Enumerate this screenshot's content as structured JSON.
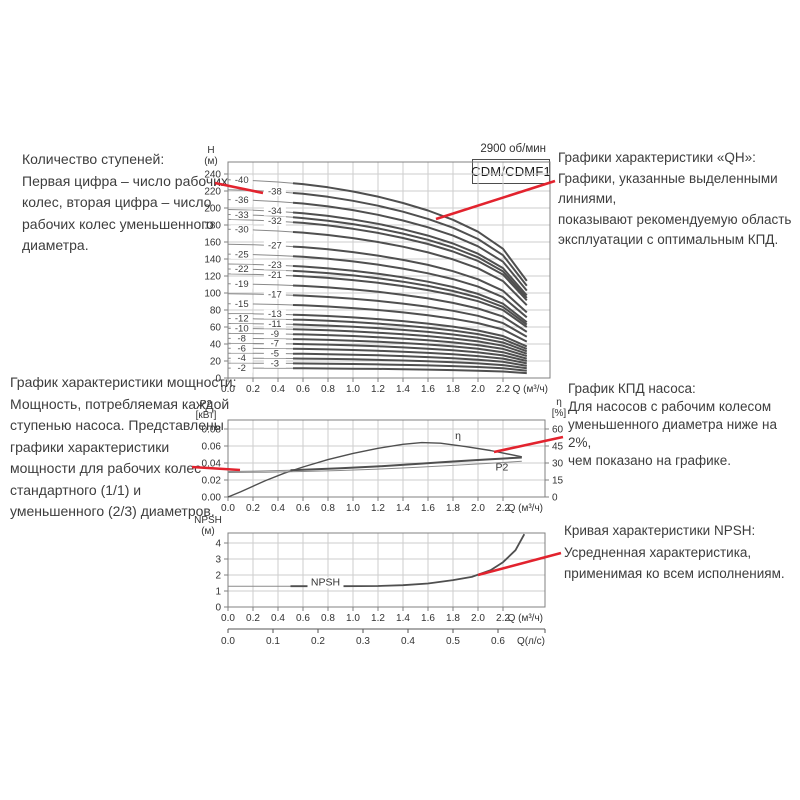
{
  "header": {
    "speed_label": "2900 об/мин",
    "model_label": "CDM/CDMF1"
  },
  "colors": {
    "callout_red": "#e2232e",
    "curve_dark": "#4f4f4f",
    "curve_thin": "#8a8a8a",
    "grid": "#cdcdcd",
    "frame": "#808080",
    "text": "#3d3d3d",
    "axis_text": "#333333"
  },
  "annotations": {
    "stages": "Количество ступеней:\nПервая цифра – число рабочих\nколес, вторая цифра – число\nрабочих колес уменьшенного\nдиаметра.",
    "qh": "Графики характеристики «QH»:\nГрафики, указанные выделенными линиями,\nпоказывают рекомендуемую область\nэксплуатации с оптимальным КПД.",
    "power": "График характеристики мощности:\nМощность, потребляемая каждой\nступенью насоса. Представлены\nграфики характеристики\nмощности для рабочих колес\nстандартного (1/1) и\nуменьшенного (2/3) диаметров.",
    "efficiency": "График КПД насоса:\nДля насосов с рабочим колесом\nуменьшенного диаметра ниже на 2%,\nчем показано на графике.",
    "npsh": "Кривая характеристики NPSH:\nУсредненная характеристика,\nприменимая ко всем исполнениям."
  },
  "chart_data": [
    {
      "id": "qh",
      "type": "line",
      "title": "CDM/CDMF1",
      "speed": "2900 об/мин",
      "x_unit": "Q (м³/ч)",
      "y_unit": "H\n(м)",
      "xlim": [
        0,
        2.58
      ],
      "ylim": [
        0,
        254
      ],
      "x_ticks": [
        0,
        0.2,
        0.4,
        0.6,
        0.8,
        1,
        1.2,
        1.4,
        1.6,
        1.8,
        2,
        2.2
      ],
      "y_ticks": [
        0,
        20,
        40,
        60,
        80,
        100,
        120,
        140,
        160,
        180,
        200,
        220,
        240
      ],
      "stages": [
        40,
        38,
        36,
        34,
        33,
        32,
        30,
        27,
        25,
        23,
        22,
        21,
        19,
        17,
        15,
        13,
        12,
        11,
        10,
        9,
        8,
        7,
        6,
        5,
        4,
        3,
        2
      ],
      "head_per_stage_m": 5.83,
      "shape_q": [
        0,
        0.2,
        0.4,
        0.6,
        0.8,
        1,
        1.2,
        1.4,
        1.6,
        1.8,
        2,
        2.2,
        2.39
      ],
      "shape_f": [
        1,
        0.996,
        0.989,
        0.978,
        0.962,
        0.941,
        0.915,
        0.883,
        0.845,
        0.798,
        0.738,
        0.652,
        0.49
      ],
      "bold_from_q": 0.52,
      "label_q_left": 0.11,
      "label_q_right": 0.375
    },
    {
      "id": "power-efficiency",
      "type": "line",
      "x_unit": "Q (м³/ч)",
      "y_unit_left": "P2\n[кВт]",
      "y_unit_right": "η\n[%]",
      "x_ticks": [
        0,
        0.2,
        0.4,
        0.6,
        0.8,
        1,
        1.2,
        1.4,
        1.6,
        1.8,
        2,
        2.2
      ],
      "y_ticks_left": [
        0,
        0.02,
        0.04,
        0.06,
        0.08
      ],
      "y_ticks_right": [
        0,
        15,
        30,
        45,
        60
      ],
      "series": [
        {
          "name": "η",
          "axis": "right",
          "label": "η",
          "label_x": 1.84,
          "label_y": 51,
          "x": [
            0,
            0.1,
            0.2,
            0.3,
            0.45,
            0.6,
            0.8,
            1,
            1.2,
            1.4,
            1.55,
            1.7,
            1.9,
            2.1,
            2.35
          ],
          "values": [
            0,
            4.5,
            9.5,
            14.5,
            21,
            26.5,
            33,
            38.5,
            43,
            46.5,
            48,
            47.5,
            44.5,
            41,
            35.5
          ]
        },
        {
          "name": "P2 (1/1)",
          "axis": "left",
          "label": "P2",
          "label_x": 2.14,
          "label_y": 0.031,
          "bold_from_q": 0.5,
          "x": [
            0,
            0.3,
            0.6,
            0.9,
            1.2,
            1.5,
            1.8,
            2.1,
            2.35
          ],
          "values": [
            0.03,
            0.0307,
            0.032,
            0.0338,
            0.036,
            0.0388,
            0.0418,
            0.0445,
            0.0465
          ]
        },
        {
          "name": "P2 (2/3)",
          "axis": "left",
          "x": [
            0,
            0.3,
            0.6,
            0.9,
            1.2,
            1.5,
            1.8,
            2.1,
            2.35
          ],
          "values": [
            0.0288,
            0.0292,
            0.03,
            0.0312,
            0.0328,
            0.0348,
            0.0372,
            0.0398,
            0.042
          ]
        }
      ]
    },
    {
      "id": "npsh",
      "type": "line",
      "x_unit": "Q (м³/ч)",
      "y_unit": "NPSH\n(м)",
      "x_ticks": [
        0,
        0.2,
        0.4,
        0.6,
        0.8,
        1,
        1.2,
        1.4,
        1.6,
        1.8,
        2,
        2.2
      ],
      "y_ticks": [
        0,
        1,
        2,
        3,
        4
      ],
      "curve": {
        "name": "NPSH",
        "label": "NPSH",
        "label_x": 0.78,
        "label_y": 1.35,
        "bold_from_q": 0.5,
        "x": [
          0,
          0.3,
          0.6,
          0.9,
          1.2,
          1.4,
          1.6,
          1.8,
          1.95,
          2.1,
          2.2,
          2.3,
          2.37
        ],
        "values": [
          1.3,
          1.3,
          1.3,
          1.3,
          1.31,
          1.36,
          1.47,
          1.68,
          1.88,
          2.3,
          2.8,
          3.55,
          4.55
        ]
      },
      "secondary_axis": {
        "unit": "Q(л/с)",
        "ticks": [
          0,
          0.1,
          0.2,
          0.3,
          0.4,
          0.5,
          0.6
        ],
        "m3h_per_unit": 3.6
      }
    }
  ]
}
